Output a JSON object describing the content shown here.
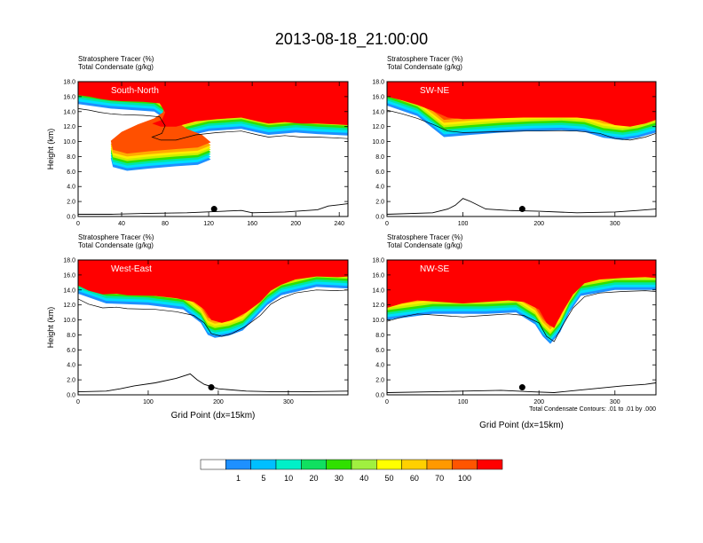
{
  "title": "2013-08-18_21:00:00",
  "footnote": "Total Condensate Contours: .01 to .01 by .000",
  "chart_data": [
    {
      "type": "area",
      "name": "South-North",
      "subtitle_line1": "Stratosphere Tracer   (%)",
      "subtitle_line2": "Total Condensate   (g/kg)",
      "ylabel": "Height (km)",
      "xlabel": "",
      "xlim": [
        0,
        248
      ],
      "ylim": [
        0,
        18
      ],
      "xticks": [
        "0",
        "40",
        "80",
        "120",
        "160",
        "200",
        "240"
      ],
      "yticks": [
        "0.0",
        "2.0",
        "4.0",
        "6.0",
        "8.0",
        "10.0",
        "12.0",
        "14.0",
        "16.0",
        "18.0"
      ],
      "marker_x": 125,
      "marker_y": 1.0,
      "tropopause": [
        [
          0,
          14.8
        ],
        [
          10,
          14.6
        ],
        [
          20,
          14.3
        ],
        [
          30,
          14.1
        ],
        [
          40,
          14.0
        ],
        [
          60,
          13.9
        ],
        [
          75,
          13.7
        ],
        [
          80,
          12.5
        ],
        [
          77,
          11.5
        ],
        [
          68,
          11.0
        ],
        [
          76,
          10.6
        ],
        [
          90,
          10.6
        ],
        [
          108,
          11.3
        ],
        [
          128,
          11.6
        ],
        [
          150,
          11.8
        ],
        [
          165,
          11.3
        ],
        [
          175,
          11.0
        ],
        [
          190,
          11.2
        ],
        [
          205,
          11.0
        ],
        [
          220,
          11.0
        ],
        [
          235,
          10.9
        ],
        [
          248,
          10.8
        ]
      ],
      "intrusion": [
        [
          0,
          15.0
        ],
        [
          30,
          14.4
        ],
        [
          70,
          14.0
        ],
        [
          80,
          13.0
        ],
        [
          78,
          11.6
        ],
        [
          70,
          10.8
        ],
        [
          55,
          10.0
        ],
        [
          40,
          9.0
        ],
        [
          30,
          7.8
        ],
        [
          32,
          6.6
        ],
        [
          45,
          6.1
        ],
        [
          65,
          6.4
        ],
        [
          90,
          6.7
        ],
        [
          110,
          6.9
        ],
        [
          122,
          7.6
        ],
        [
          114,
          8.6
        ],
        [
          100,
          9.4
        ],
        [
          92,
          10.2
        ],
        [
          100,
          10.7
        ],
        [
          120,
          11.4
        ],
        [
          150,
          11.7
        ],
        [
          165,
          11.2
        ],
        [
          175,
          10.9
        ],
        [
          200,
          11.2
        ],
        [
          220,
          11.0
        ],
        [
          248,
          10.8
        ]
      ],
      "terrain": [
        [
          0,
          0.3
        ],
        [
          30,
          0.3
        ],
        [
          60,
          0.4
        ],
        [
          100,
          0.5
        ],
        [
          150,
          0.8
        ],
        [
          160,
          0.5
        ],
        [
          190,
          0.6
        ],
        [
          220,
          0.9
        ],
        [
          230,
          1.4
        ],
        [
          248,
          1.7
        ]
      ]
    },
    {
      "type": "area",
      "name": "SW-NE",
      "subtitle_line1": "Stratosphere Tracer   (%)",
      "subtitle_line2": "Total Condensate   (g/kg)",
      "ylabel": "",
      "xlabel": "",
      "xlim": [
        0,
        354
      ],
      "ylim": [
        0,
        18
      ],
      "xticks": [
        "0",
        "100",
        "200",
        "300"
      ],
      "yticks": [
        "0.0",
        "2.0",
        "4.0",
        "6.0",
        "8.0",
        "10.0",
        "12.0",
        "14.0",
        "16.0",
        "18.0"
      ],
      "marker_x": 178,
      "marker_y": 1.0,
      "tropopause": [
        [
          0,
          14.6
        ],
        [
          20,
          14.1
        ],
        [
          40,
          13.5
        ],
        [
          60,
          12.7
        ],
        [
          80,
          11.8
        ],
        [
          100,
          11.6
        ],
        [
          140,
          11.7
        ],
        [
          180,
          11.8
        ],
        [
          220,
          11.8
        ],
        [
          250,
          11.8
        ],
        [
          280,
          11.5
        ],
        [
          300,
          10.8
        ],
        [
          320,
          10.6
        ],
        [
          340,
          11.0
        ],
        [
          354,
          11.5
        ]
      ],
      "intrusion": [
        [
          0,
          14.8
        ],
        [
          40,
          13.4
        ],
        [
          60,
          11.8
        ],
        [
          75,
          10.6
        ],
        [
          110,
          10.9
        ],
        [
          150,
          11.2
        ],
        [
          190,
          11.4
        ],
        [
          230,
          11.5
        ],
        [
          260,
          11.3
        ],
        [
          285,
          10.5
        ],
        [
          310,
          10.2
        ],
        [
          330,
          10.5
        ],
        [
          354,
          11.2
        ]
      ],
      "terrain": [
        [
          0,
          0.3
        ],
        [
          60,
          0.5
        ],
        [
          80,
          1.0
        ],
        [
          90,
          1.5
        ],
        [
          100,
          2.4
        ],
        [
          110,
          2.0
        ],
        [
          130,
          1.0
        ],
        [
          160,
          0.8
        ],
        [
          200,
          0.7
        ],
        [
          250,
          0.5
        ],
        [
          300,
          0.6
        ],
        [
          330,
          0.8
        ],
        [
          354,
          1.0
        ]
      ]
    },
    {
      "type": "area",
      "name": "West-East",
      "subtitle_line1": "Stratosphere Tracer   (%)",
      "subtitle_line2": "Total Condensate   (g/kg)",
      "ylabel": "Height (km)",
      "xlabel": "Grid Point (dx=15km)",
      "xlim": [
        0,
        385
      ],
      "ylim": [
        0,
        18
      ],
      "xticks": [
        "0",
        "100",
        "200",
        "300"
      ],
      "yticks": [
        "0.0",
        "2.0",
        "4.0",
        "6.0",
        "8.0",
        "10.0",
        "12.0",
        "14.0",
        "16.0",
        "18.0"
      ],
      "marker_x": 190,
      "marker_y": 1.0,
      "tropopause": [
        [
          0,
          13.2
        ],
        [
          15,
          12.5
        ],
        [
          35,
          12.0
        ],
        [
          55,
          12.1
        ],
        [
          70,
          11.9
        ],
        [
          110,
          11.8
        ],
        [
          140,
          11.5
        ],
        [
          165,
          11.0
        ],
        [
          180,
          10.0
        ],
        [
          190,
          8.6
        ],
        [
          205,
          8.2
        ],
        [
          220,
          8.6
        ],
        [
          240,
          9.6
        ],
        [
          260,
          11.0
        ],
        [
          275,
          12.5
        ],
        [
          290,
          13.3
        ],
        [
          310,
          14.0
        ],
        [
          340,
          14.4
        ],
        [
          370,
          14.3
        ],
        [
          385,
          14.4
        ]
      ],
      "intrusion": [
        [
          0,
          13.5
        ],
        [
          40,
          12.2
        ],
        [
          100,
          12.0
        ],
        [
          150,
          11.4
        ],
        [
          175,
          9.6
        ],
        [
          185,
          8.0
        ],
        [
          195,
          7.6
        ],
        [
          215,
          7.9
        ],
        [
          235,
          8.6
        ],
        [
          255,
          10.5
        ],
        [
          270,
          12.0
        ],
        [
          290,
          13.3
        ],
        [
          340,
          14.4
        ],
        [
          385,
          14.2
        ]
      ],
      "terrain": [
        [
          0,
          0.4
        ],
        [
          40,
          0.5
        ],
        [
          60,
          0.8
        ],
        [
          80,
          1.2
        ],
        [
          110,
          1.6
        ],
        [
          140,
          2.2
        ],
        [
          160,
          2.8
        ],
        [
          170,
          2.0
        ],
        [
          180,
          1.4
        ],
        [
          200,
          0.8
        ],
        [
          240,
          0.5
        ],
        [
          280,
          0.4
        ],
        [
          320,
          0.4
        ],
        [
          385,
          0.5
        ]
      ]
    },
    {
      "type": "area",
      "name": "NW-SE",
      "subtitle_line1": "Stratosphere Tracer   (%)",
      "subtitle_line2": "Total Condensate   (g/kg)",
      "ylabel": "",
      "xlabel": "Grid Point (dx=15km)",
      "xlim": [
        0,
        354
      ],
      "ylim": [
        0,
        18
      ],
      "xticks": [
        "0",
        "100",
        "200",
        "300"
      ],
      "yticks": [
        "0.0",
        "2.0",
        "4.0",
        "6.0",
        "8.0",
        "10.0",
        "12.0",
        "14.0",
        "16.0",
        "18.0"
      ],
      "marker_x": 178,
      "marker_y": 1.0,
      "tropopause": [
        [
          0,
          10.2
        ],
        [
          20,
          10.8
        ],
        [
          40,
          11.2
        ],
        [
          70,
          11.0
        ],
        [
          100,
          10.8
        ],
        [
          130,
          11.0
        ],
        [
          160,
          11.2
        ],
        [
          180,
          11.0
        ],
        [
          200,
          10.0
        ],
        [
          210,
          8.2
        ],
        [
          220,
          7.5
        ],
        [
          230,
          9.5
        ],
        [
          245,
          12.0
        ],
        [
          260,
          13.5
        ],
        [
          280,
          14.0
        ],
        [
          310,
          14.2
        ],
        [
          340,
          14.3
        ],
        [
          354,
          14.2
        ]
      ],
      "intrusion": [
        [
          0,
          10.0
        ],
        [
          60,
          10.8
        ],
        [
          130,
          10.8
        ],
        [
          170,
          11.0
        ],
        [
          195,
          9.4
        ],
        [
          205,
          7.8
        ],
        [
          215,
          6.8
        ],
        [
          228,
          8.4
        ],
        [
          240,
          11.0
        ],
        [
          255,
          13.2
        ],
        [
          300,
          14.0
        ],
        [
          354,
          14.0
        ]
      ],
      "terrain": [
        [
          0,
          0.3
        ],
        [
          60,
          0.4
        ],
        [
          100,
          0.5
        ],
        [
          150,
          0.6
        ],
        [
          190,
          0.4
        ],
        [
          220,
          0.3
        ],
        [
          250,
          0.6
        ],
        [
          280,
          0.9
        ],
        [
          310,
          1.2
        ],
        [
          340,
          1.4
        ],
        [
          354,
          1.6
        ]
      ]
    }
  ],
  "colorbar": {
    "labels": [
      "1",
      "5",
      "10",
      "20",
      "30",
      "40",
      "50",
      "60",
      "70",
      "100"
    ],
    "colors": [
      "#ffffff",
      "#1e90ff",
      "#00bfff",
      "#00f0c8",
      "#10e060",
      "#30e000",
      "#a0f040",
      "#ffff00",
      "#ffd000",
      "#ff9900",
      "#ff5500",
      "#ff0000"
    ]
  },
  "colors": {
    "band_outer": "#1e90ff",
    "band_2": "#00dfff",
    "band_3": "#00e8a0",
    "band_4": "#30e000",
    "band_5": "#c8f000",
    "band_6": "#ffee00",
    "band_7": "#ffaa00",
    "band_8": "#ff5000",
    "core": "#ff0000"
  }
}
